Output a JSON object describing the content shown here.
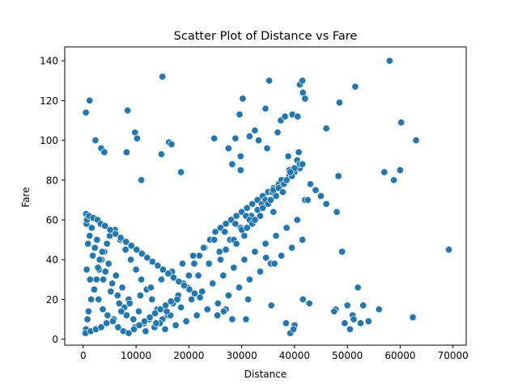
{
  "chart_data": {
    "type": "scatter",
    "title": "Scatter Plot of Distance vs Fare",
    "xlabel": "Distance",
    "ylabel": "Fare",
    "xlim": [
      -3500,
      72500
    ],
    "ylim": [
      -3,
      147
    ],
    "xticks": [
      0,
      10000,
      20000,
      30000,
      40000,
      50000,
      60000,
      70000
    ],
    "yticks": [
      0,
      20,
      40,
      60,
      80,
      100,
      120,
      140
    ],
    "grid": false,
    "marker_color": "#1f77b4",
    "marker_edge_color": "#ffffff",
    "points": {
      "x": [
        500,
        800,
        1000,
        1500,
        2000,
        2500,
        3000,
        3500,
        4000,
        4500,
        5000,
        6000,
        7000,
        8000,
        9000,
        10000,
        11000,
        12000,
        13000,
        14000,
        15000,
        16000,
        17000,
        18000,
        19000,
        20000,
        21000,
        22000,
        23000,
        24000,
        25000,
        26000,
        27000,
        28000,
        29000,
        30000,
        31000,
        32000,
        33000,
        34000,
        35000,
        36000,
        37000,
        38000,
        39000,
        40000,
        41000,
        42000,
        600,
        1200,
        2200,
        3100,
        4200,
        5500,
        6500,
        7800,
        9500,
        11500,
        13500,
        15500,
        17500,
        19500,
        21500,
        23500,
        25500,
        27500,
        29500,
        31500,
        33500,
        35500,
        37500,
        39500,
        41500,
        700,
        1600,
        2600,
        3600,
        4800,
        6200,
        7400,
        8600,
        10500,
        12500,
        14500,
        16500,
        18500,
        20500,
        22500,
        24500,
        26500,
        28500,
        30500,
        32500,
        34500,
        36500,
        38500,
        40500,
        900,
        1800,
        2800,
        3800,
        5200,
        6800,
        8200,
        9800,
        11800,
        13800,
        15800,
        17800,
        19800,
        21800,
        23800,
        25800,
        27800,
        29800,
        31800,
        33800,
        35800,
        37800,
        39800,
        400,
        1400,
        2400,
        3400,
        4400,
        5800,
        7200,
        8800,
        10800,
        12800,
        14800,
        16800,
        18800,
        20800,
        22800,
        24800,
        26800,
        28800,
        30800,
        550,
        1100,
        1900,
        2700,
        3300,
        4100,
        5100,
        6100,
        7100,
        8100,
        9100,
        10100,
        11100,
        12100,
        13100,
        14100,
        15100,
        16100,
        17100,
        18100,
        19100,
        20100,
        21100,
        22100,
        650,
        1300,
        2100,
        2900,
        3700,
        4600,
        5600,
        6600,
        7600,
        8600,
        9600,
        10600,
        11600,
        12600,
        13600,
        14600,
        15600,
        16600,
        27000,
        28500,
        30000,
        31500,
        33000,
        34500,
        36000,
        37500,
        39000,
        40500,
        26000,
        29000,
        32000,
        35000,
        38000,
        41000,
        30500,
        33500,
        36500,
        39500,
        31000,
        34000,
        37000,
        40000,
        32500,
        35500,
        38500,
        36000,
        37800,
        39200,
        40800,
        42500,
        38800,
        41500,
        43000,
        34800,
        33200,
        29800,
        28200,
        44000,
        45000,
        46000,
        500,
        1200,
        2300,
        3400,
        4000,
        8400,
        8200,
        9800,
        10200,
        11000,
        14800,
        15000,
        16200,
        16700,
        18500,
        24800,
        27500,
        28800,
        29600,
        29800,
        30200,
        31500,
        32500,
        34500,
        35200,
        36800,
        37400,
        38200,
        39600,
        40600,
        41000,
        41500,
        41600,
        42000,
        47800,
        48000,
        48300,
        49000,
        50000,
        51000,
        51500,
        52000,
        53000,
        54000,
        47500,
        49500,
        50500,
        52500,
        56000,
        57000,
        58000,
        58800,
        60000,
        60200,
        63000,
        62400,
        69200,
        51200,
        48500,
        46000,
        30800,
        31200,
        35600,
        38400,
        39200,
        40000,
        41600,
        42800,
        39800,
        34600,
        36200,
        27000,
        28200,
        25400,
        26600
      ],
      "y": [
        5,
        10,
        14,
        20,
        25,
        30,
        35,
        40,
        44,
        48,
        52,
        55,
        50,
        45,
        40,
        35,
        30,
        25,
        20,
        15,
        10,
        12,
        18,
        22,
        28,
        32,
        38,
        42,
        46,
        50,
        54,
        56,
        58,
        60,
        62,
        64,
        66,
        68,
        70,
        72,
        74,
        76,
        78,
        80,
        82,
        84,
        86,
        70,
        58,
        52,
        46,
        40,
        34,
        28,
        22,
        16,
        10,
        8,
        6,
        5,
        7,
        9,
        12,
        15,
        18,
        22,
        26,
        30,
        34,
        38,
        42,
        46,
        50,
        60,
        56,
        50,
        44,
        38,
        32,
        26,
        20,
        14,
        10,
        8,
        12,
        16,
        20,
        24,
        28,
        32,
        36,
        40,
        44,
        48,
        52,
        56,
        60,
        48,
        42,
        36,
        30,
        24,
        18,
        12,
        6,
        4,
        8,
        14,
        20,
        26,
        32,
        38,
        44,
        50,
        56,
        62,
        68,
        74,
        80,
        86,
        3,
        4,
        5,
        6,
        8,
        10,
        14,
        18,
        22,
        26,
        30,
        34,
        38,
        42,
        46,
        50,
        54,
        58,
        62,
        63,
        62,
        61,
        60,
        58,
        57,
        55,
        53,
        51,
        49,
        47,
        45,
        43,
        41,
        39,
        37,
        35,
        33,
        31,
        29,
        27,
        25,
        23,
        21,
        35,
        30,
        25,
        20,
        15,
        12,
        9,
        6,
        4,
        3,
        5,
        7,
        9,
        11,
        13,
        15,
        17,
        19,
        45,
        50,
        55,
        60,
        65,
        70,
        75,
        80,
        85,
        90,
        40,
        48,
        58,
        68,
        78,
        88,
        52,
        62,
        72,
        82,
        56,
        66,
        76,
        86,
        60,
        70,
        80,
        64,
        74,
        84,
        94,
        70,
        92,
        88,
        78,
        96,
        100,
        92,
        88,
        75,
        72,
        68,
        114,
        120,
        100,
        96,
        94,
        115,
        94,
        104,
        101,
        80,
        93,
        132,
        99,
        98,
        84,
        101,
        96,
        101,
        113,
        85,
        121,
        102,
        105,
        116,
        130,
        104,
        110,
        112,
        113,
        112,
        128,
        130,
        124,
        121,
        15,
        64,
        82,
        44,
        17,
        12,
        127,
        26,
        17,
        9,
        14,
        8,
        5,
        8,
        15,
        84,
        140,
        80,
        85,
        109,
        100,
        11,
        45,
        10,
        119,
        106,
        10,
        20,
        17,
        8,
        3,
        7,
        20,
        18,
        5,
        41,
        38,
        15,
        10,
        12,
        14
      ]
    }
  }
}
